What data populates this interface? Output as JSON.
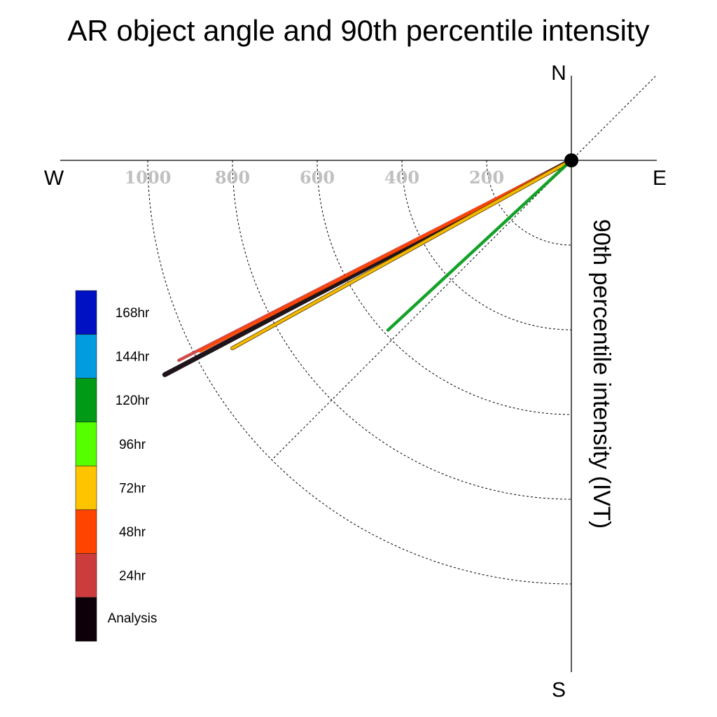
{
  "chart_data": {
    "type": "polar-line",
    "title": "AR object angle and 90th percentile intensity",
    "ylabel": "90th percentile intensity (IVT)",
    "compass": {
      "north": "N",
      "south": "S",
      "east": "E",
      "west": "W"
    },
    "radial_ticks": [
      200,
      400,
      600,
      800,
      1000
    ],
    "radial_tick_labels": [
      "200",
      "400",
      "600",
      "800",
      "1000"
    ],
    "diagonal_reference_angle_deg": 45,
    "legend": {
      "position": "left",
      "entries": [
        {
          "label": "168hr",
          "color": "#0011c4"
        },
        {
          "label": "144hr",
          "color": "#009cdf"
        },
        {
          "label": "120hr",
          "color": "#009a17"
        },
        {
          "label": "96hr",
          "color": "#55ff00"
        },
        {
          "label": "72hr",
          "color": "#ffc400"
        },
        {
          "label": "48hr",
          "color": "#ff4400"
        },
        {
          "label": "24hr",
          "color": "#cd3c3c"
        },
        {
          "label": "Analysis",
          "color": "#0d0008"
        }
      ]
    },
    "series": [
      {
        "name": "Analysis",
        "color": "#0d0008",
        "angle_deg_below_west": 27.8,
        "intensity": 1085
      },
      {
        "name": "24hr",
        "color": "#cd3c3c",
        "angle_deg_below_west": 27.0,
        "intensity": 1040
      },
      {
        "name": "48hr",
        "color": "#ff4400",
        "angle_deg_below_west": 27.2,
        "intensity": 985
      },
      {
        "name": "72hr",
        "color": "#ffc400",
        "angle_deg_below_west": 29.0,
        "intensity": 915
      },
      {
        "name": "120hr",
        "color": "#009a17",
        "angle_deg_below_west": 42.8,
        "intensity": 590
      }
    ]
  }
}
